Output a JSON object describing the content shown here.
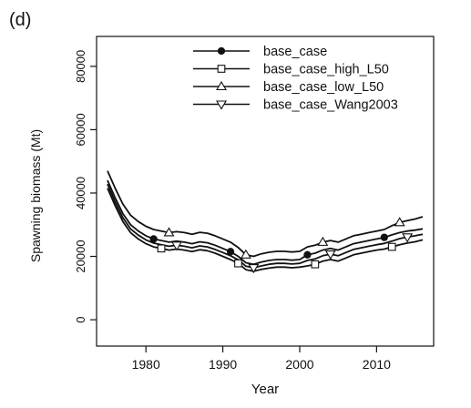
{
  "panel_label": "(d)",
  "chart_data": {
    "type": "line",
    "title": "",
    "xlabel": "Year",
    "ylabel": "Spawning biomass (Mt)",
    "xlim": [
      1975,
      2016
    ],
    "ylim": [
      0,
      90000
    ],
    "x_ticks": [
      1980,
      1990,
      2000,
      2010
    ],
    "x_tick_labels": [
      "1980",
      "1990",
      "2000",
      "2010"
    ],
    "y_ticks": [
      0,
      20000,
      40000,
      60000,
      80000
    ],
    "y_tick_labels": [
      "0",
      "20000",
      "40000",
      "60000",
      "80000"
    ],
    "grid": false,
    "legend_position": "top-right",
    "line_color": "#111111",
    "x": [
      1975,
      1976,
      1977,
      1978,
      1979,
      1980,
      1981,
      1982,
      1983,
      1984,
      1985,
      1986,
      1987,
      1988,
      1989,
      1990,
      1991,
      1992,
      1993,
      1994,
      1995,
      1996,
      1997,
      1998,
      1999,
      2000,
      2001,
      2002,
      2003,
      2004,
      2005,
      2006,
      2007,
      2008,
      2009,
      2010,
      2011,
      2012,
      2013,
      2014,
      2015,
      2016
    ],
    "series": [
      {
        "name": "base_case",
        "marker": "filled-circle",
        "marker_years": [
          1981,
          1991,
          2001,
          2011
        ],
        "values": [
          44000,
          38500,
          33500,
          30000,
          28000,
          26500,
          25500,
          25000,
          24500,
          24800,
          24500,
          24000,
          24600,
          24300,
          23500,
          22500,
          21500,
          20000,
          18000,
          17500,
          18200,
          18700,
          19000,
          19000,
          18800,
          19000,
          20500,
          21000,
          22000,
          22500,
          22000,
          23000,
          24000,
          24500,
          25000,
          25500,
          26000,
          26800,
          27500,
          28000,
          28300,
          28700
        ]
      },
      {
        "name": "base_case_high_L50",
        "marker": "open-square",
        "marker_years": [
          1982,
          1992,
          2002,
          2012
        ],
        "values": [
          41500,
          36000,
          31000,
          27500,
          25500,
          24000,
          23000,
          22500,
          22000,
          22300,
          22000,
          21500,
          22100,
          21800,
          21000,
          20000,
          19000,
          17800,
          15800,
          15300,
          15900,
          16300,
          16600,
          16600,
          16400,
          16600,
          17000,
          17500,
          18500,
          19000,
          18500,
          19500,
          20500,
          21000,
          21500,
          22000,
          22300,
          23000,
          23700,
          24200,
          24600,
          25200
        ]
      },
      {
        "name": "base_case_low_L50",
        "marker": "open-triangle-up",
        "marker_years": [
          1983,
          1993,
          2003,
          2013
        ],
        "values": [
          47000,
          41500,
          36500,
          33000,
          31000,
          29500,
          28500,
          28000,
          27500,
          27800,
          27500,
          27000,
          27600,
          27300,
          26500,
          25500,
          24500,
          22800,
          20500,
          20000,
          20800,
          21300,
          21600,
          21600,
          21400,
          21600,
          23000,
          23500,
          24500,
          25000,
          24500,
          25500,
          26500,
          27000,
          27500,
          28000,
          28500,
          29700,
          30700,
          31300,
          31800,
          32500
        ]
      },
      {
        "name": "base_case_Wang2003",
        "marker": "open-triangle-down",
        "marker_years": [
          1984,
          1994,
          2004,
          2014
        ],
        "values": [
          42800,
          37200,
          32200,
          28700,
          26700,
          25200,
          24200,
          23700,
          23200,
          23500,
          23200,
          22700,
          23300,
          23000,
          22200,
          21200,
          20200,
          18900,
          16900,
          16400,
          17000,
          17500,
          17800,
          17800,
          17600,
          17800,
          18700,
          19200,
          20200,
          20700,
          20200,
          21200,
          22200,
          22700,
          23200,
          23700,
          24100,
          24800,
          25600,
          26100,
          26500,
          27000
        ]
      }
    ]
  }
}
